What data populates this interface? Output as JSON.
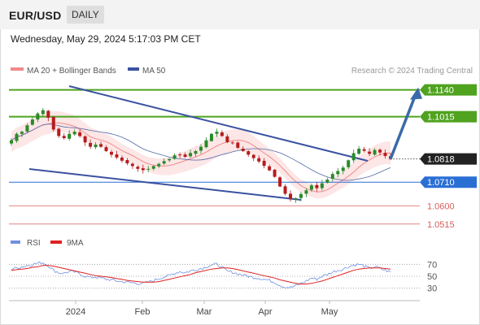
{
  "header": {
    "symbol": "EUR/USD",
    "timeframe": "DAILY",
    "datetime": "Wednesday, May 29, 2024 5:17:03 PM CET"
  },
  "legend": {
    "ma20": "MA 20 + Bollinger Bands",
    "ma50": "MA 50",
    "credit": "Research © 2024 Trading Central"
  },
  "rsi_legend": {
    "rsi": "RSI",
    "ma9": "9MA"
  },
  "colors": {
    "green": "#4fa31f",
    "blue": "#2a6fd4",
    "red": "#d95c5c",
    "dark": "#222222",
    "trend": "#3a52a0",
    "band": "#fcd6d6",
    "ma20": "#f08a8a",
    "ma50": "#5468a8",
    "rsi": "#6f8fe0",
    "rsi_ma": "#e02020"
  },
  "chart_data": [
    {
      "type": "candlestick",
      "title": "EUR/USD",
      "timeframe": "DAILY",
      "x_tick_labels": [
        "2024",
        "Feb",
        "Mar",
        "Apr",
        "May"
      ],
      "y_range": [
        1.048,
        1.118
      ],
      "levels": [
        {
          "label": "1.1140",
          "value": 1.114,
          "style": "green-line",
          "badge": "green"
        },
        {
          "label": "1.1015",
          "value": 1.1015,
          "style": "green-line",
          "badge": "green"
        },
        {
          "label": "1.0818",
          "value": 1.0818,
          "style": "last-price",
          "badge": "dark"
        },
        {
          "label": "1.0710",
          "value": 1.071,
          "style": "blue-line",
          "badge": "blue"
        },
        {
          "label": "1.0600",
          "value": 1.06,
          "style": "red-line",
          "badge": "red-text"
        },
        {
          "label": "1.0515",
          "value": 1.0515,
          "style": "red-line",
          "badge": "red-text"
        }
      ],
      "closes": [
        1.0905,
        1.0935,
        1.0945,
        1.0975,
        1.1002,
        1.103,
        1.1045,
        1.101,
        1.0955,
        1.0925,
        1.0915,
        1.0935,
        1.0945,
        1.0925,
        1.0895,
        1.0875,
        1.0885,
        1.0875,
        1.0855,
        1.0838,
        1.0825,
        1.081,
        1.0798,
        1.0785,
        1.0772,
        1.0766,
        1.0772,
        1.0785,
        1.0795,
        1.0808,
        1.0818,
        1.0835,
        1.0838,
        1.0828,
        1.0846,
        1.0855,
        1.0875,
        1.0905,
        1.0935,
        1.0945,
        1.0925,
        1.0896,
        1.0892,
        1.087,
        1.0855,
        1.0838,
        1.0822,
        1.0806,
        1.0786,
        1.0765,
        1.0735,
        1.069,
        1.0656,
        1.063,
        1.0635,
        1.0655,
        1.0672,
        1.0695,
        1.0682,
        1.0705,
        1.0722,
        1.0748,
        1.0762,
        1.0778,
        1.0812,
        1.0845,
        1.0866,
        1.0856,
        1.0842,
        1.086,
        1.0848,
        1.0832,
        1.0818
      ],
      "resistance_trendline": "descending, connects early-January high to late-April/May",
      "support_trendline": "descending, connects mid-January low to mid-April low",
      "forecast_arrow": {
        "from": 1.0818,
        "to": 1.114
      }
    },
    {
      "type": "line",
      "title": "RSI",
      "y_tick_labels": [
        "70",
        "50",
        "30"
      ],
      "series": [
        {
          "name": "RSI",
          "values": [
            62,
            64,
            66,
            68,
            70,
            72,
            73,
            68,
            60,
            56,
            55,
            58,
            57,
            54,
            50,
            48,
            49,
            47,
            45,
            44,
            42,
            41,
            40,
            39,
            38,
            38,
            40,
            43,
            46,
            49,
            51,
            55,
            58,
            56,
            59,
            61,
            63,
            66,
            69,
            70,
            65,
            58,
            57,
            54,
            52,
            50,
            48,
            47,
            45,
            43,
            40,
            35,
            32,
            31,
            34,
            38,
            42,
            47,
            45,
            50,
            53,
            57,
            60,
            62,
            66,
            69,
            70,
            67,
            63,
            66,
            63,
            60,
            57
          ]
        },
        {
          "name": "9MA",
          "values": [
            60,
            61,
            62,
            63,
            65,
            66,
            68,
            68,
            67,
            65,
            63,
            61,
            59,
            57,
            55,
            53,
            51,
            50,
            49,
            48,
            46,
            45,
            43,
            42,
            41,
            40,
            40,
            40,
            41,
            43,
            45,
            47,
            49,
            51,
            53,
            56,
            58,
            60,
            62,
            63,
            64,
            64,
            63,
            61,
            59,
            57,
            55,
            53,
            51,
            49,
            47,
            44,
            42,
            40,
            38,
            37,
            37,
            38,
            40,
            42,
            45,
            48,
            51,
            54,
            57,
            60,
            62,
            63,
            64,
            64,
            64,
            63,
            62
          ]
        }
      ]
    }
  ]
}
